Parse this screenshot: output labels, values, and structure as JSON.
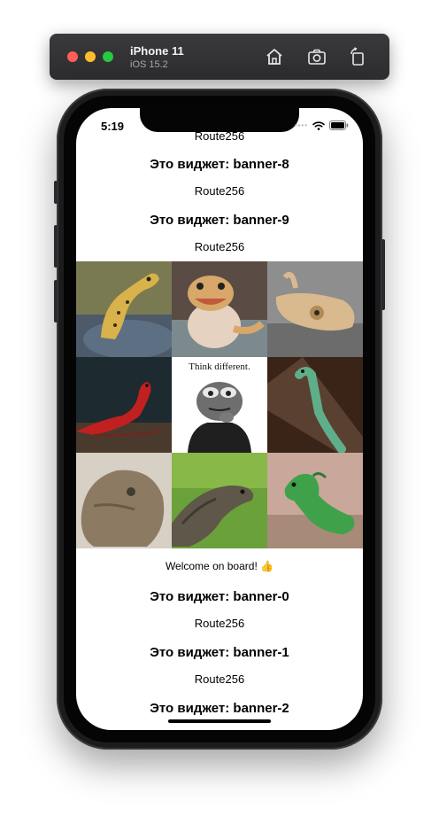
{
  "simulator": {
    "device": "iPhone 11",
    "os": "iOS 15.2",
    "tools": [
      "home-icon",
      "screenshot-icon",
      "rotate-icon"
    ]
  },
  "status_bar": {
    "time": "5:19",
    "dots": "••••"
  },
  "feed": {
    "top": [
      {
        "type": "route",
        "text": "Route256"
      },
      {
        "type": "widget",
        "text": "Это виджет: banner-8"
      },
      {
        "type": "route",
        "text": "Route256"
      },
      {
        "type": "widget",
        "text": "Это виджет: banner-9"
      },
      {
        "type": "route",
        "text": "Route256"
      }
    ],
    "gallery": {
      "caption_tile_text": "Think different."
    },
    "welcome": "Welcome on board! 👍",
    "bottom": [
      {
        "type": "widget",
        "text": "Это виджет: banner-0"
      },
      {
        "type": "route",
        "text": "Route256"
      },
      {
        "type": "widget",
        "text": "Это виджет: banner-1"
      },
      {
        "type": "route",
        "text": "Route256"
      },
      {
        "type": "widget",
        "text": "Это виджет: banner-2"
      }
    ]
  },
  "colors": {
    "toolbar": "#2c2c2e",
    "close": "#ff5f57",
    "minimize": "#febc2e",
    "zoom": "#28c840"
  }
}
